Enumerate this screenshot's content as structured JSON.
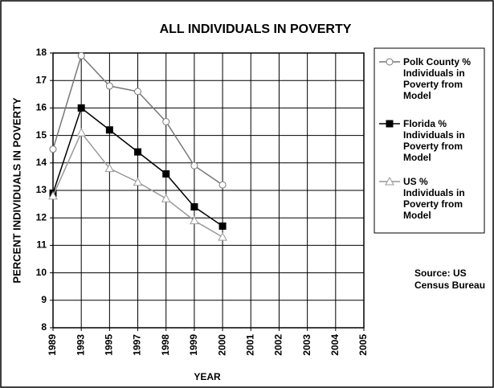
{
  "chart_data": {
    "type": "line",
    "title": "ALL INDIVIDUALS IN POVERTY",
    "x_label": "YEAR",
    "y_label": "PERCENT INDIVIDUALS IN POVERTY",
    "categories": [
      "1989",
      "1993",
      "1995",
      "1997",
      "1998",
      "1999",
      "2000",
      "2001",
      "2002",
      "2003",
      "2004",
      "2005"
    ],
    "series": [
      {
        "name": "Polk County % Individuals in Poverty from Model",
        "color": "#777777",
        "marker": "circle",
        "values": [
          14.5,
          17.9,
          16.8,
          16.6,
          15.5,
          13.9,
          13.2,
          null,
          null,
          null,
          null,
          null
        ]
      },
      {
        "name": "Florida % Individuals in Poverty from Model",
        "color": "#000000",
        "marker": "square",
        "values": [
          12.9,
          16.0,
          15.2,
          14.4,
          13.6,
          12.4,
          11.7,
          null,
          null,
          null,
          null,
          null
        ]
      },
      {
        "name": "US % Individuals in Poverty from Model",
        "color": "#999999",
        "marker": "triangle",
        "values": [
          12.8,
          15.1,
          13.8,
          13.3,
          12.7,
          11.9,
          11.3,
          null,
          null,
          null,
          null,
          null
        ]
      }
    ],
    "ylim": [
      8,
      18
    ],
    "yticks": [
      8,
      9,
      10,
      11,
      12,
      13,
      14,
      15,
      16,
      17,
      18
    ],
    "grid": true,
    "annotation": "Source: US Census Bureau"
  }
}
